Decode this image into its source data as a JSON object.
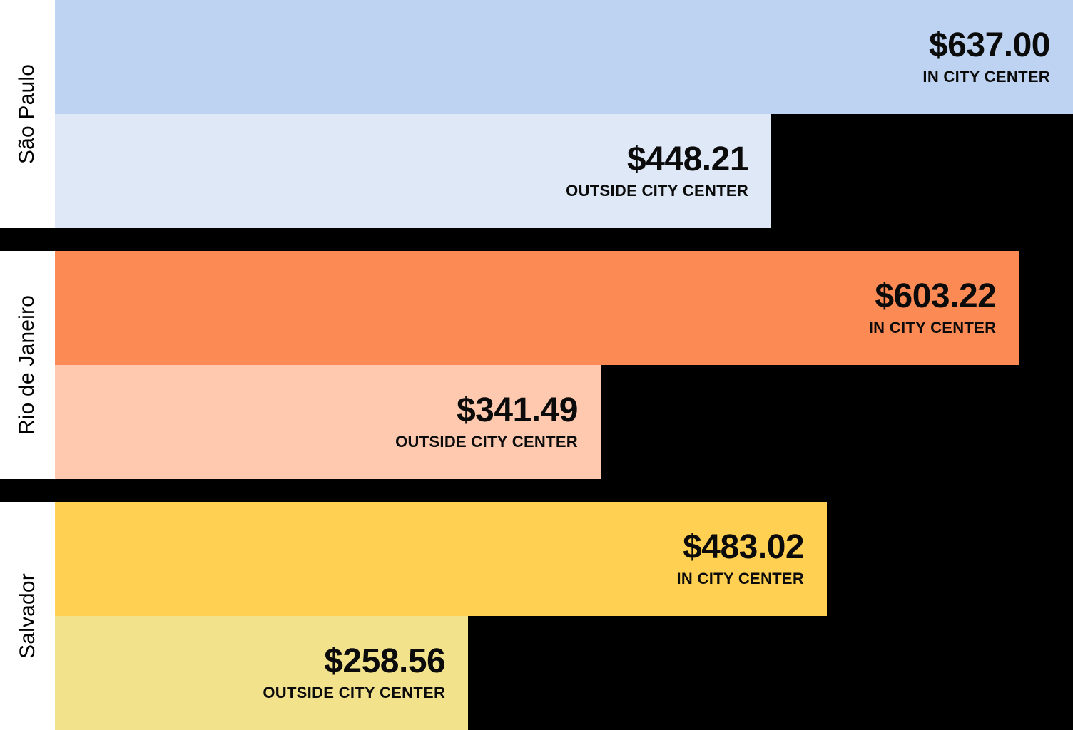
{
  "chart_data": {
    "type": "bar",
    "orientation": "horizontal",
    "title": "",
    "unit": "USD",
    "value_axis_max": 637.0,
    "grid": false,
    "legend": "none",
    "background_color": "#000000",
    "label_strip_color": "#ffffff",
    "text_color": "#0b0b0b",
    "categories": [
      "IN CITY CENTER",
      "OUTSIDE CITY CENTER"
    ],
    "groups": [
      {
        "city": "São Paulo",
        "bars": [
          {
            "label": "IN CITY CENTER",
            "value": 637.0,
            "value_text": "$637.00",
            "color": "#bed3f1"
          },
          {
            "label": "OUTSIDE CITY CENTER",
            "value": 448.21,
            "value_text": "$448.21",
            "color": "#dfe8f7"
          }
        ]
      },
      {
        "city": "Rio de Janeiro",
        "bars": [
          {
            "label": "IN CITY CENTER",
            "value": 603.22,
            "value_text": "$603.22",
            "color": "#fc8a54"
          },
          {
            "label": "OUTSIDE CITY CENTER",
            "value": 341.49,
            "value_text": "$341.49",
            "color": "#ffc9af"
          }
        ]
      },
      {
        "city": "Salvador",
        "bars": [
          {
            "label": "IN CITY CENTER",
            "value": 483.02,
            "value_text": "$483.02",
            "color": "#ffd051"
          },
          {
            "label": "OUTSIDE CITY CENTER",
            "value": 258.56,
            "value_text": "$258.56",
            "color": "#f2e28c"
          }
        ]
      }
    ]
  }
}
